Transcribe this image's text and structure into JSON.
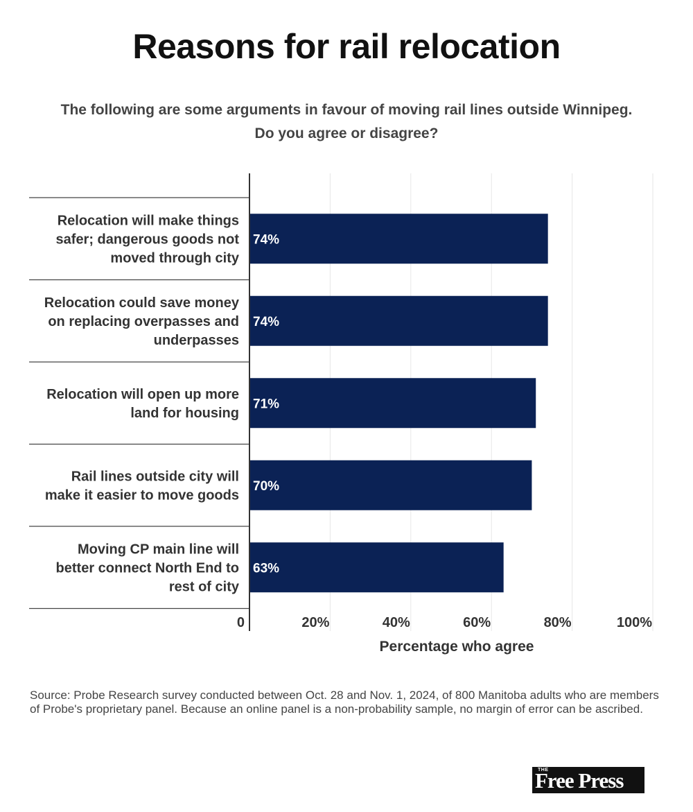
{
  "header": {
    "title": "Reasons for rail relocation",
    "subtitle_line1": "The following are some arguments in favour of moving rail lines outside Winnipeg.",
    "subtitle_line2": "Do you agree or disagree?"
  },
  "chart_data": {
    "type": "bar",
    "orientation": "horizontal",
    "categories": [
      [
        "Relocation will make things",
        "safer; dangerous goods not",
        "moved through city"
      ],
      [
        "Relocation could save money",
        "on replacing overpasses and",
        "underpasses"
      ],
      [
        "Relocation will open up more",
        "land for housing"
      ],
      [
        "Rail lines outside city will",
        "make it easier to move goods"
      ],
      [
        "Moving CP main line will",
        "better connect North End to",
        "rest of city"
      ]
    ],
    "values": [
      74,
      74,
      71,
      70,
      63
    ],
    "data_labels": [
      "74%",
      "74%",
      "71%",
      "70%",
      "63%"
    ],
    "xlim": [
      0,
      100
    ],
    "x_ticks": [
      0,
      20,
      40,
      60,
      80,
      100
    ],
    "x_tick_labels": [
      "0",
      "20%",
      "40%",
      "60%",
      "80%",
      "100%"
    ],
    "xlabel": "Percentage who agree",
    "grid": true,
    "bar_color": "#0b2255"
  },
  "footer": {
    "source": "Source: Probe Research survey conducted between Oct. 28 and Nov. 1, 2024, of 800 Manitoba adults who are members of Probe's proprietary panel. Because an online panel is a non-probability sample, no margin of error can be ascribed.",
    "logo_small": "THE",
    "logo_main": "Free Press"
  }
}
